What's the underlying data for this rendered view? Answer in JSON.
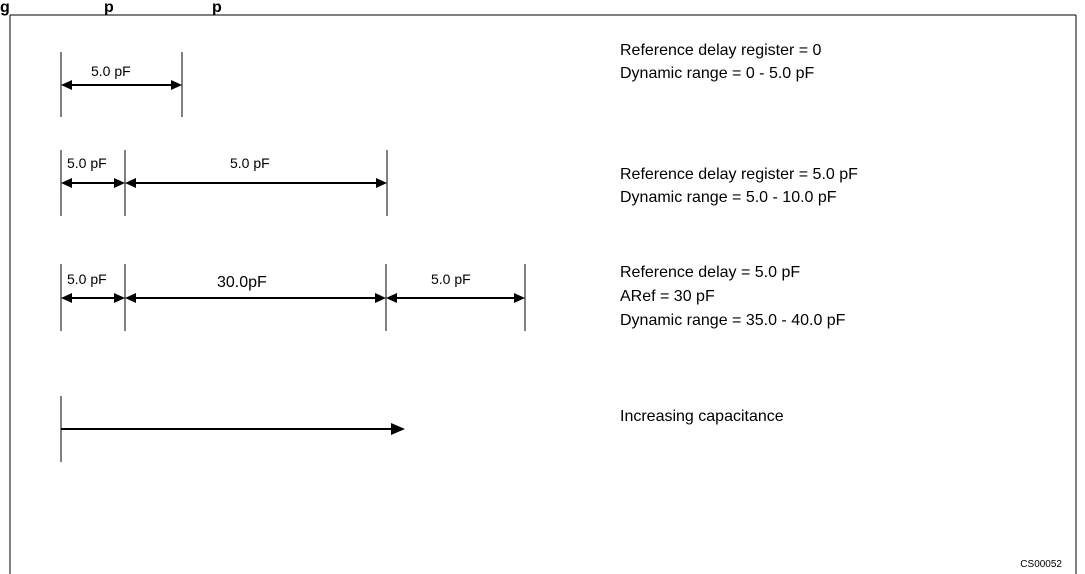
{
  "figure": {
    "title_fragment": "g",
    "title_fragment_2": "p",
    "title_fragment_3": "p",
    "figure_code": "CS00052"
  },
  "rows": [
    {
      "segments": [
        "5.0 pF"
      ],
      "notes": [
        "Reference delay register = 0",
        "Dynamic range = 0 - 5.0 pF"
      ]
    },
    {
      "segments": [
        "5.0 pF",
        "5.0 pF"
      ],
      "notes": [
        "Reference delay register = 5.0 pF",
        "Dynamic range = 5.0 - 10.0 pF"
      ]
    },
    {
      "segments": [
        "5.0 pF",
        "30.0pF",
        "5.0 pF"
      ],
      "notes": [
        "Reference delay  =  5.0 pF",
        "ARef = 30 pF",
        "Dynamic range = 35.0 - 40.0 pF"
      ]
    },
    {
      "segments": [],
      "notes": [
        "Increasing capacitance"
      ]
    }
  ]
}
